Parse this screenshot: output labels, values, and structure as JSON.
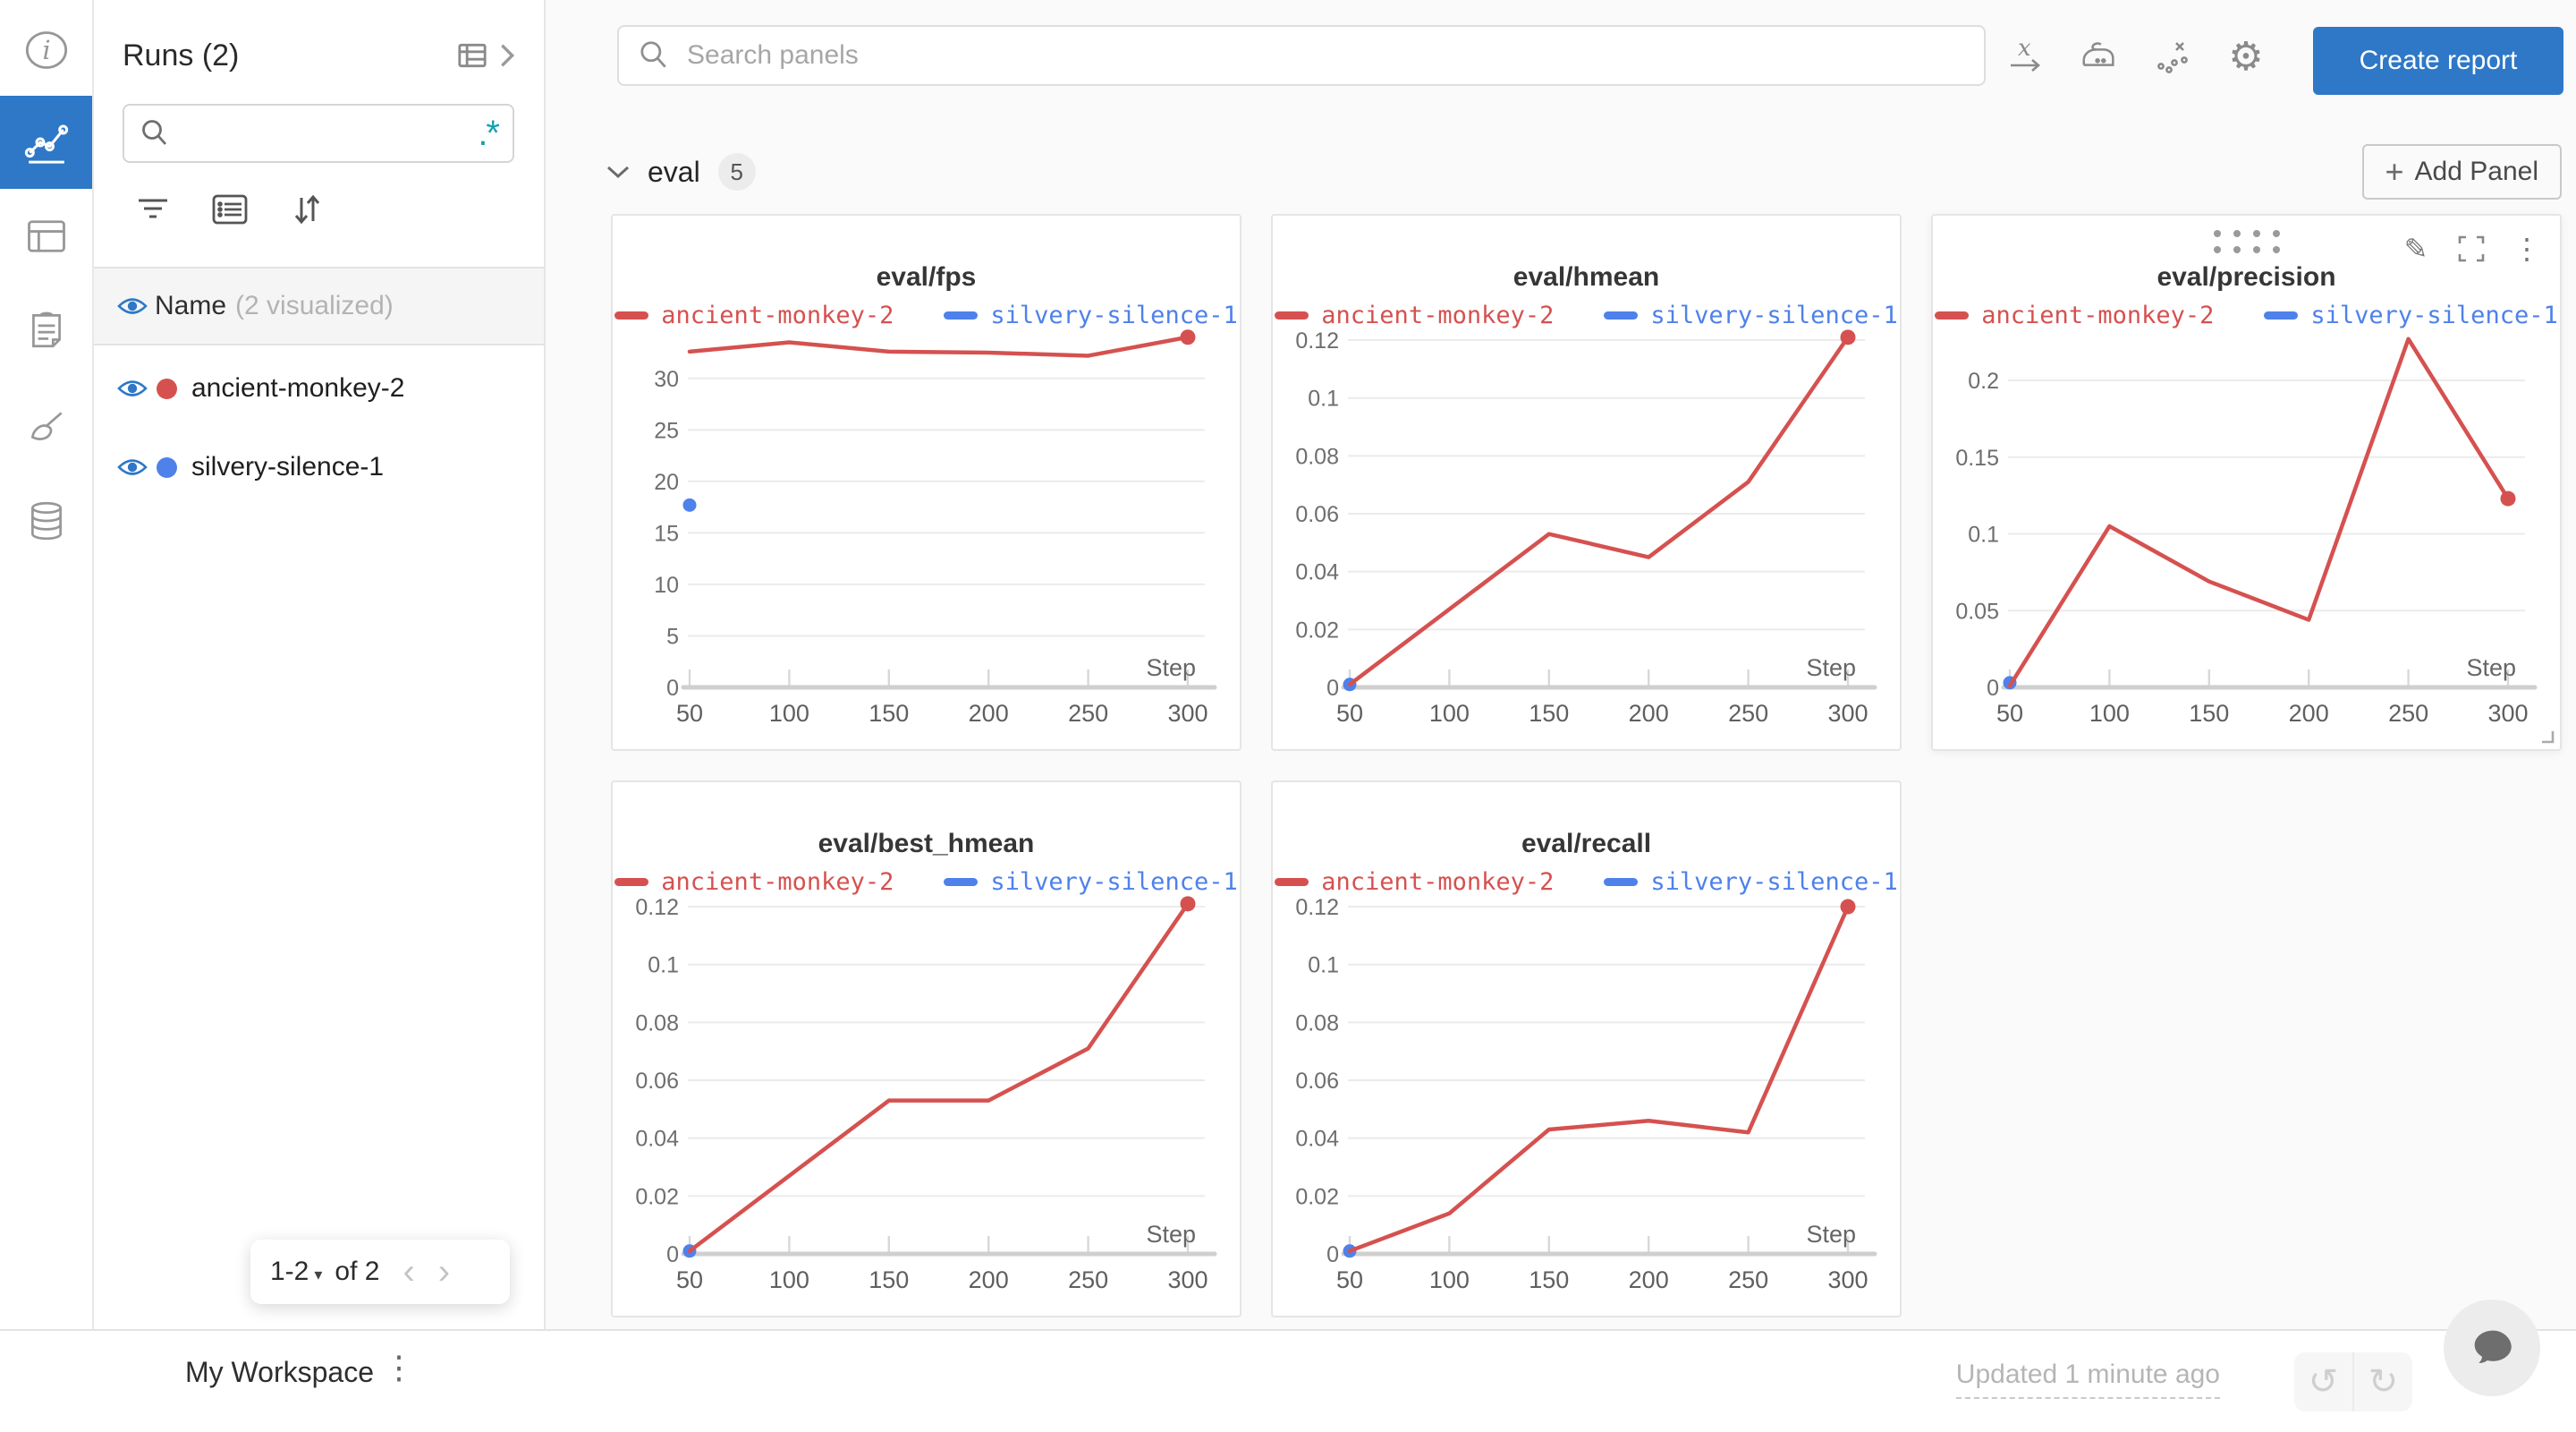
{
  "colors": {
    "accent_blue": "#2E78C7",
    "run_red": "#D5514F",
    "run_blue": "#4E81EA",
    "regex_teal": "#15A2AC",
    "grid_line": "#ebebeb",
    "axis_line": "#cfcfcf"
  },
  "rail": {
    "icons": [
      "info-icon",
      "line-chart-icon",
      "table-icon",
      "clipboard-icon",
      "broom-icon",
      "database-icon"
    ],
    "active_icon": "line-chart-icon"
  },
  "runs_panel": {
    "title": "Runs (2)",
    "search_value": "",
    "regex_glyph": ".*",
    "name_header": "Name",
    "visualized_note": "(2 visualized)",
    "pagination": {
      "range": "1-2",
      "caret": "▾",
      "of_label": "of 2",
      "prev": "‹",
      "next": "›"
    }
  },
  "runs": [
    {
      "name": "ancient-monkey-2",
      "color": "#D5514F"
    },
    {
      "name": "silvery-silence-1",
      "color": "#4E81EA"
    }
  ],
  "topbar": {
    "search_placeholder": "Search panels",
    "icons": [
      "x-axis-icon",
      "smoothing-iron-icon",
      "outliers-icon",
      "gear-icon"
    ],
    "create_report_label": "Create report"
  },
  "section": {
    "title": "eval",
    "panel_count": "5",
    "add_panel_plus": "+",
    "add_panel_label": "Add Panel"
  },
  "chart_data": [
    {
      "type": "line",
      "title": "eval/fps",
      "xlabel": "Step",
      "x": [
        50,
        100,
        150,
        200,
        250,
        300
      ],
      "yticks": [
        0,
        5,
        10,
        15,
        20,
        25,
        30
      ],
      "ylim": [
        0,
        34.5
      ],
      "series": [
        {
          "name": "ancient-monkey-2",
          "color": "#D5514F",
          "values": [
            32.6,
            33.5,
            32.6,
            32.5,
            32.2,
            34.0
          ],
          "end_dot": true
        },
        {
          "name": "silvery-silence-1",
          "color": "#4E81EA",
          "values": [
            17.7
          ],
          "point_only": true
        }
      ],
      "legend_position": "top",
      "grid": "horizontal"
    },
    {
      "type": "line",
      "title": "eval/hmean",
      "xlabel": "Step",
      "x": [
        50,
        100,
        150,
        200,
        250,
        300
      ],
      "yticks": [
        0,
        0.02,
        0.04,
        0.06,
        0.08,
        0.1,
        0.12
      ],
      "ylim": [
        0,
        0.1228
      ],
      "series": [
        {
          "name": "ancient-monkey-2",
          "color": "#D5514F",
          "values": [
            0.001,
            0.027,
            0.053,
            0.045,
            0.071,
            0.121
          ],
          "end_dot": true
        },
        {
          "name": "silvery-silence-1",
          "color": "#4E81EA",
          "values": [
            0.001
          ],
          "point_only": true
        }
      ],
      "legend_position": "top",
      "grid": "horizontal"
    },
    {
      "type": "line",
      "title": "eval/precision",
      "xlabel": "Step",
      "x": [
        50,
        100,
        150,
        200,
        250,
        300
      ],
      "yticks": [
        0,
        0.05,
        0.1,
        0.15,
        0.2
      ],
      "ylim": [
        0,
        0.2315
      ],
      "series": [
        {
          "name": "ancient-monkey-2",
          "color": "#D5514F",
          "values": [
            0.001,
            0.105,
            0.069,
            0.044,
            0.227,
            0.123
          ],
          "end_dot": true
        },
        {
          "name": "silvery-silence-1",
          "color": "#4E81EA",
          "values": [
            0.003
          ],
          "point_only": true
        }
      ],
      "legend_position": "top",
      "grid": "horizontal"
    },
    {
      "type": "line",
      "title": "eval/best_hmean",
      "xlabel": "Step",
      "x": [
        50,
        100,
        150,
        200,
        250,
        300
      ],
      "yticks": [
        0,
        0.02,
        0.04,
        0.06,
        0.08,
        0.1,
        0.12
      ],
      "ylim": [
        0,
        0.1228
      ],
      "series": [
        {
          "name": "ancient-monkey-2",
          "color": "#D5514F",
          "values": [
            0.001,
            0.027,
            0.053,
            0.053,
            0.071,
            0.121
          ],
          "end_dot": true
        },
        {
          "name": "silvery-silence-1",
          "color": "#4E81EA",
          "values": [
            0.001
          ],
          "point_only": true
        }
      ],
      "legend_position": "top",
      "grid": "horizontal"
    },
    {
      "type": "line",
      "title": "eval/recall",
      "xlabel": "Step",
      "x": [
        50,
        100,
        150,
        200,
        250,
        300
      ],
      "yticks": [
        0,
        0.02,
        0.04,
        0.06,
        0.08,
        0.1,
        0.12
      ],
      "ylim": [
        0,
        0.1228
      ],
      "series": [
        {
          "name": "ancient-monkey-2",
          "color": "#D5514F",
          "values": [
            0.001,
            0.014,
            0.043,
            0.046,
            0.042,
            0.12
          ],
          "end_dot": true
        },
        {
          "name": "silvery-silence-1",
          "color": "#4E81EA",
          "values": [
            0.001
          ],
          "point_only": true
        }
      ],
      "legend_position": "top",
      "grid": "horizontal"
    }
  ],
  "footer": {
    "workspace_label": "My Workspace",
    "updated_label": "Updated 1 minute ago"
  }
}
